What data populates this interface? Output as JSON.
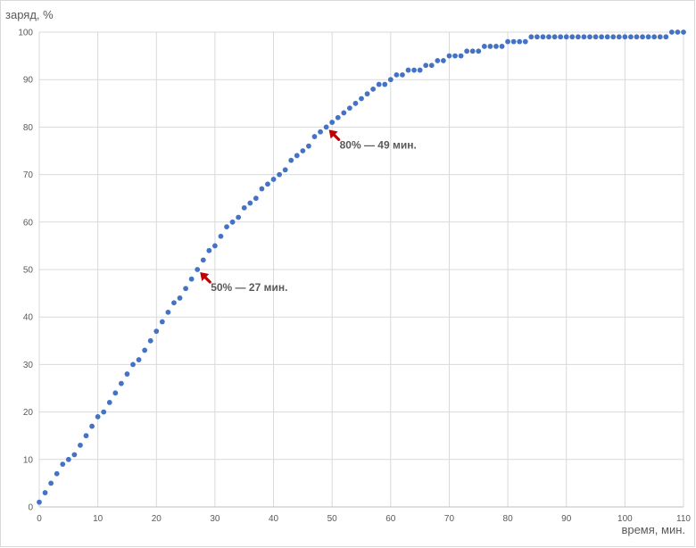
{
  "chart_data": {
    "type": "scatter",
    "ylabel": "заряд, %",
    "xlabel": "время, мин.",
    "xlim": [
      0,
      110
    ],
    "ylim": [
      0,
      100
    ],
    "x_ticks": [
      0,
      10,
      20,
      30,
      40,
      50,
      60,
      70,
      80,
      90,
      100,
      110
    ],
    "y_ticks": [
      0,
      10,
      20,
      30,
      40,
      50,
      60,
      70,
      80,
      90,
      100
    ],
    "x_tick_labels": [
      "0",
      "10",
      "20",
      "30",
      "40",
      "50",
      "60",
      "70",
      "80",
      "90",
      "100",
      "110"
    ],
    "y_tick_labels": [
      "0",
      "10",
      "20",
      "30",
      "40",
      "50",
      "60",
      "70",
      "80",
      "90",
      "100"
    ],
    "grid": true,
    "legend": "none",
    "marker_color": "#4472c4",
    "arrow_color": "#c00000",
    "series": [
      {
        "values": [
          1,
          3,
          5,
          7,
          9,
          10,
          11,
          13,
          15,
          17,
          19,
          20,
          22,
          24,
          26,
          28,
          30,
          31,
          33,
          35,
          37,
          39,
          41,
          43,
          44,
          46,
          48,
          50,
          52,
          54,
          55,
          57,
          59,
          60,
          61,
          63,
          64,
          65,
          67,
          68,
          69,
          70,
          71,
          73,
          74,
          75,
          76,
          78,
          79,
          80,
          81,
          82,
          83,
          84,
          85,
          86,
          87,
          88,
          89,
          89,
          90,
          91,
          91,
          92,
          92,
          92,
          93,
          93,
          94,
          94,
          95,
          95,
          95,
          96,
          96,
          96,
          97,
          97,
          97,
          97,
          98,
          98,
          98,
          98,
          99,
          99,
          99,
          99,
          99,
          99,
          99,
          99,
          99,
          99,
          99,
          99,
          99,
          99,
          99,
          99,
          99,
          99,
          99,
          99,
          99,
          99,
          99,
          99,
          100,
          100,
          100
        ],
        "x": [
          0,
          1,
          2,
          3,
          4,
          5,
          6,
          7,
          8,
          9,
          10,
          11,
          12,
          13,
          14,
          15,
          16,
          17,
          18,
          19,
          20,
          21,
          22,
          23,
          24,
          25,
          26,
          27,
          28,
          29,
          30,
          31,
          32,
          33,
          34,
          35,
          36,
          37,
          38,
          39,
          40,
          41,
          42,
          43,
          44,
          45,
          46,
          47,
          48,
          49,
          50,
          51,
          52,
          53,
          54,
          55,
          56,
          57,
          58,
          59,
          60,
          61,
          62,
          63,
          64,
          65,
          66,
          67,
          68,
          69,
          70,
          71,
          72,
          73,
          74,
          75,
          76,
          77,
          78,
          79,
          80,
          81,
          82,
          83,
          84,
          85,
          86,
          87,
          88,
          89,
          90,
          91,
          92,
          93,
          94,
          95,
          96,
          97,
          98,
          99,
          100,
          101,
          102,
          103,
          104,
          105,
          106,
          107,
          108,
          109,
          110
        ]
      }
    ],
    "annotations": [
      {
        "text": "80% — 49 мин.",
        "x": 49,
        "y": 80
      },
      {
        "text": "50% — 27 мин.",
        "x": 27,
        "y": 50
      }
    ]
  }
}
